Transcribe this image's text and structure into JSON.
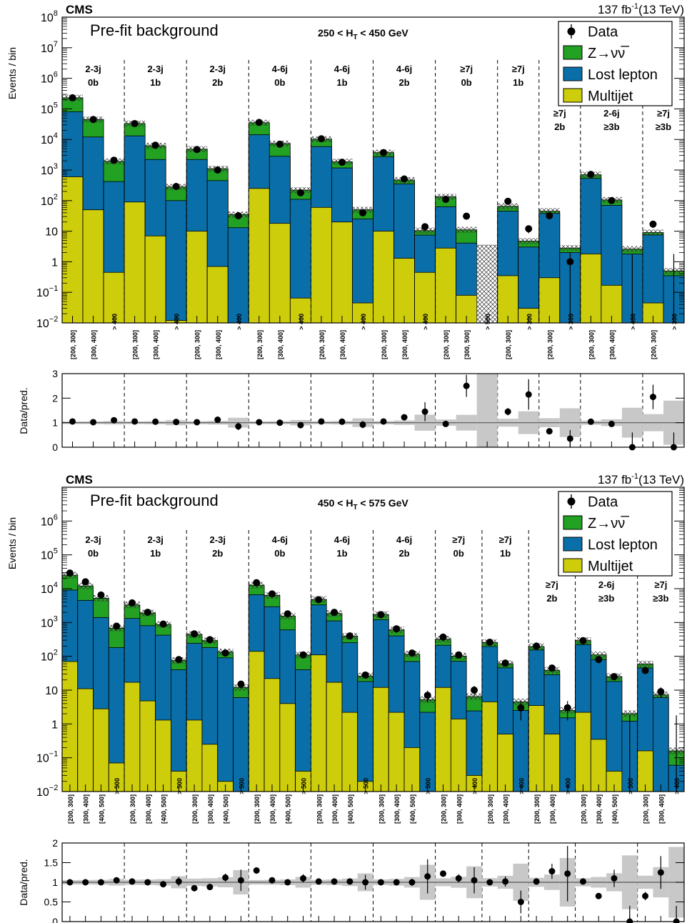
{
  "colors": {
    "znn": "#22a122",
    "lostlep": "#0a6fa8",
    "multijet": "#cdcd0c",
    "unc_band": "#c8c8c8"
  },
  "chart_data": [
    {
      "type": "bar",
      "stacked": true,
      "log_y": true,
      "experiment": "CMS",
      "lumi_label": "137 fb",
      "lumi_sup": "-1",
      "energy_label": "(13 TeV)",
      "title": "Pre-fit background",
      "ht_label": "250 < H",
      "ht_sub": "T",
      "ht_tail": " < 450 GeV",
      "ylabel": "Events / bin",
      "ratio_ylabel": "Data/pred.",
      "ylim": [
        0.01,
        100000000
      ],
      "ratio_ylim": [
        0,
        3
      ],
      "ratio_ticks": [
        "0",
        "1",
        "2",
        "3"
      ],
      "legend": {
        "data": "Data",
        "znn": "Z→νν̅",
        "lostlep": "Lost lepton",
        "multijet": "Multijet",
        "placement": "top-right"
      },
      "groups": [
        {
          "njets": "2-3j",
          "nb": "0b",
          "nbins": 3
        },
        {
          "njets": "2-3j",
          "nb": "1b",
          "nbins": 3
        },
        {
          "njets": "2-3j",
          "nb": "2b",
          "nbins": 3
        },
        {
          "njets": "4-6j",
          "nb": "0b",
          "nbins": 3
        },
        {
          "njets": "4-6j",
          "nb": "1b",
          "nbins": 3
        },
        {
          "njets": "4-6j",
          "nb": "2b",
          "nbins": 3
        },
        {
          "njets": "≥7j",
          "nb": "0b",
          "nbins": 3
        },
        {
          "njets": "≥7j",
          "nb": "1b",
          "nbins": 2
        },
        {
          "njets": "≥7j",
          "nb": "2b",
          "nbins": 2
        },
        {
          "njets": "2-6j",
          "nb": "≥3b",
          "nbins": 3
        },
        {
          "njets": "≥7j",
          "nb": "≥3b",
          "nbins": 2
        }
      ],
      "categories": [
        "[200, 300]",
        "[300, 400]",
        "> 400",
        "[200, 300]",
        "[300, 400]",
        "> 400",
        "[200, 300]",
        "[300, 400]",
        "> 400",
        "[200, 300]",
        "[300, 400]",
        "> 400",
        "[200, 300]",
        "[300, 400]",
        "> 400",
        "[200, 300]",
        "[300, 400]",
        "> 400",
        "[200, 300]",
        "[300, 500]",
        "> 500",
        "[200, 300]",
        "> 300",
        "[200, 300]",
        "> 300",
        "[200, 300]",
        "[300, 400]",
        "> 400",
        "[200, 300]",
        "> 300"
      ],
      "y_ticks": [
        {
          "v": 0.01,
          "base": "10",
          "exp": "−2"
        },
        {
          "v": 0.1,
          "base": "10",
          "exp": "−1"
        },
        {
          "v": 1,
          "base": "1",
          "exp": ""
        },
        {
          "v": 10,
          "base": "10",
          "exp": ""
        },
        {
          "v": 100,
          "base": "10",
          "exp": "2"
        },
        {
          "v": 1000,
          "base": "10",
          "exp": "3"
        },
        {
          "v": 10000,
          "base": "10",
          "exp": "4"
        },
        {
          "v": 100000,
          "base": "10",
          "exp": "5"
        },
        {
          "v": 1000000,
          "base": "10",
          "exp": "6"
        },
        {
          "v": 10000000,
          "base": "10",
          "exp": "7"
        },
        {
          "v": 100000000,
          "base": "10",
          "exp": "8"
        }
      ],
      "series": [
        {
          "name": "Multijet",
          "values": [
            600,
            50,
            0.45,
            90,
            7,
            0.012,
            10,
            0.7,
            0.01,
            250,
            18,
            0.065,
            60,
            20,
            0.045,
            10,
            1.3,
            0.45,
            2.8,
            0.08,
            0,
            0.35,
            0.03,
            0.3,
            0.01,
            1.8,
            0.17,
            0,
            0.045,
            0
          ]
        },
        {
          "name": "Lost lepton",
          "values": [
            80000,
            12000,
            420,
            13000,
            2200,
            100,
            2200,
            450,
            13,
            14000,
            2800,
            110,
            5800,
            1150,
            25,
            2700,
            350,
            7,
            60,
            4,
            0,
            45,
            3,
            38,
            2,
            530,
            70,
            1.8,
            7.5,
            0.35
          ]
        },
        {
          "name": "Z→νν̅",
          "values": [
            150000,
            33000,
            1500,
            20000,
            4000,
            180,
            2600,
            650,
            22,
            21000,
            4500,
            110,
            4300,
            700,
            25,
            1000,
            120,
            3,
            70,
            7,
            0,
            20,
            1.7,
            7,
            0.8,
            170,
            35,
            0.8,
            1.5,
            0.15
          ]
        },
        {
          "name": "Data",
          "values": [
            230000,
            45000,
            2100,
            33000,
            6500,
            290,
            4700,
            1000,
            32,
            36000,
            7000,
            180,
            10500,
            1800,
            40,
            3700,
            510,
            14,
            110,
            31,
            0,
            95,
            12,
            32,
            1,
            720,
            100,
            0,
            17,
            0
          ]
        }
      ],
      "ratio": [
        1.05,
        1.02,
        1.1,
        1.05,
        1.04,
        1.03,
        1.02,
        1.12,
        0.85,
        1.02,
        1.0,
        0.9,
        1.05,
        1.04,
        0.92,
        1.05,
        1.22,
        1.45,
        0.95,
        2.5,
        null,
        1.45,
        2.15,
        0.65,
        0.35,
        1.04,
        0.95,
        0,
        2.05,
        0
      ]
    },
    {
      "type": "bar",
      "stacked": true,
      "log_y": true,
      "experiment": "CMS",
      "lumi_label": "137 fb",
      "lumi_sup": "-1",
      "energy_label": "(13 TeV)",
      "title": "Pre-fit background",
      "ht_label": "450 < H",
      "ht_sub": "T",
      "ht_tail": " < 575 GeV",
      "ylabel": "Events / bin",
      "ratio_ylabel": "Data/pred.",
      "ylim": [
        0.01,
        10000000
      ],
      "ratio_ylim": [
        0,
        2
      ],
      "ratio_ticks": [
        "0",
        "0.5",
        "1",
        "1.5",
        "2"
      ],
      "legend": {
        "data": "Data",
        "znn": "Z→νν̅",
        "lostlep": "Lost lepton",
        "multijet": "Multijet",
        "placement": "top-right"
      },
      "groups": [
        {
          "njets": "2-3j",
          "nb": "0b",
          "nbins": 4
        },
        {
          "njets": "2-3j",
          "nb": "1b",
          "nbins": 4
        },
        {
          "njets": "2-3j",
          "nb": "2b",
          "nbins": 4
        },
        {
          "njets": "4-6j",
          "nb": "0b",
          "nbins": 4
        },
        {
          "njets": "4-6j",
          "nb": "1b",
          "nbins": 4
        },
        {
          "njets": "4-6j",
          "nb": "2b",
          "nbins": 4
        },
        {
          "njets": "≥7j",
          "nb": "0b",
          "nbins": 3
        },
        {
          "njets": "≥7j",
          "nb": "1b",
          "nbins": 3
        },
        {
          "njets": "≥7j",
          "nb": "2b",
          "nbins": 3
        },
        {
          "njets": "2-6j",
          "nb": "≥3b",
          "nbins": 4
        },
        {
          "njets": "≥7j",
          "nb": "≥3b",
          "nbins": 3
        }
      ],
      "categories": [
        "[200, 300]",
        "[300, 400]",
        "[400, 500]",
        "> 500",
        "[200, 300]",
        "[300, 400]",
        "[400, 500]",
        "> 500",
        "[200, 300]",
        "[300, 400]",
        "[400, 500]",
        "> 500",
        "[200, 300]",
        "[300, 400]",
        "[400, 500]",
        "> 500",
        "[200, 300]",
        "[300, 400]",
        "[400, 500]",
        "> 500",
        "[200, 300]",
        "[300, 400]",
        "[400, 500]",
        "> 500",
        "[200, 300]",
        "[300, 400]",
        "> 400",
        "[200, 300]",
        "[300, 400]",
        "> 400",
        "[200, 300]",
        "[300, 400]",
        "> 400",
        "[200, 300]",
        "[300, 400]",
        "[400, 500]",
        "> 500",
        "[200, 300]",
        "[300, 400]",
        "> 400"
      ],
      "y_ticks": [
        {
          "v": 0.01,
          "base": "10",
          "exp": "−2"
        },
        {
          "v": 0.1,
          "base": "10",
          "exp": "−1"
        },
        {
          "v": 1,
          "base": "1",
          "exp": ""
        },
        {
          "v": 10,
          "base": "10",
          "exp": ""
        },
        {
          "v": 100,
          "base": "10",
          "exp": "2"
        },
        {
          "v": 1000,
          "base": "10",
          "exp": "3"
        },
        {
          "v": 10000,
          "base": "10",
          "exp": "4"
        },
        {
          "v": 100000,
          "base": "10",
          "exp": "5"
        },
        {
          "v": 1000000,
          "base": "10",
          "exp": "6"
        }
      ],
      "series": [
        {
          "name": "Multijet",
          "values": [
            70,
            11,
            2.8,
            0.07,
            17,
            4.8,
            1.3,
            0.04,
            1.3,
            0.25,
            0.02,
            0.01,
            140,
            22,
            4,
            0.04,
            110,
            17,
            2.2,
            0.02,
            12,
            2.2,
            0.2,
            0.01,
            12,
            1.4,
            0.03,
            4.5,
            0.5,
            0.01,
            3.5,
            0.5,
            0.01,
            2.2,
            0.35,
            0.04,
            0.01,
            0.16,
            0.01,
            0.01
          ]
        },
        {
          "name": "Lost lepton",
          "values": [
            9000,
            4500,
            1400,
            180,
            1300,
            800,
            420,
            40,
            240,
            180,
            90,
            6,
            6500,
            2900,
            600,
            40,
            3200,
            1100,
            250,
            18,
            1200,
            400,
            70,
            2.2,
            200,
            70,
            2.4,
            190,
            45,
            2.5,
            150,
            28,
            1.5,
            220,
            80,
            18,
            1.2,
            45,
            6,
            0.05
          ]
        },
        {
          "name": "Z→νν̅",
          "values": [
            16000,
            7500,
            3800,
            500,
            2000,
            1100,
            450,
            35,
            200,
            110,
            45,
            6,
            6000,
            3400,
            950,
            70,
            1500,
            730,
            140,
            8,
            500,
            200,
            45,
            3,
            110,
            30,
            4,
            60,
            15,
            2,
            40,
            10,
            1,
            70,
            30,
            7,
            0.8,
            14,
            1.2,
            0.1
          ]
        },
        {
          "name": "Data",
          "values": [
            29000,
            16000,
            6500,
            780,
            3800,
            2000,
            900,
            80,
            460,
            310,
            125,
            15,
            15000,
            7000,
            1800,
            110,
            4700,
            2000,
            400,
            28,
            1700,
            650,
            125,
            7,
            370,
            110,
            10,
            260,
            63,
            3,
            200,
            45,
            3,
            290,
            80,
            25,
            0,
            38,
            9,
            0
          ]
        }
      ],
      "ratio": [
        1.0,
        1.0,
        1.0,
        1.05,
        1.02,
        1.0,
        0.95,
        1.02,
        0.85,
        0.88,
        1.12,
        1.05,
        1.3,
        1.05,
        1.0,
        1.1,
        1.02,
        1.02,
        1.02,
        1.0,
        1.0,
        1.0,
        1.0,
        1.15,
        1.22,
        1.1,
        1.05,
        1.0,
        1.02,
        0.5,
        1.02,
        1.28,
        1.22,
        1.02,
        0.65,
        1.1,
        0,
        0.65,
        1.25,
        0
      ]
    }
  ]
}
